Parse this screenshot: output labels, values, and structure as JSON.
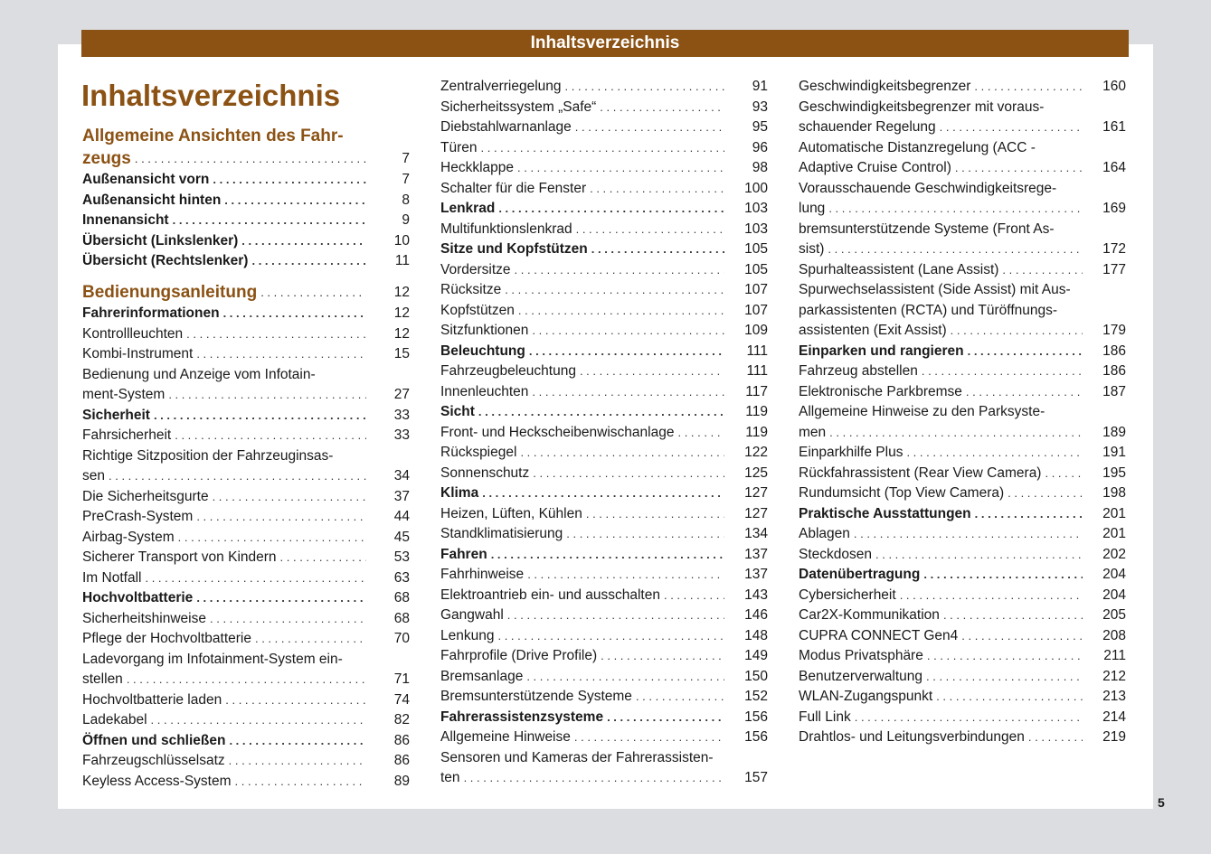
{
  "header": {
    "title": "Inhaltsverzeichnis"
  },
  "page_title": "Inhaltsverzeichnis",
  "page_number": "5",
  "colors": {
    "accent": "#8b5214",
    "background": "#dcdde0",
    "page": "#ffffff"
  },
  "columns": [
    [
      {
        "lines": [
          "Allgemeine Ansichten des Fahr-",
          "zeugs"
        ],
        "page": "7",
        "style": "section"
      },
      {
        "lines": [
          "Außenansicht vorn"
        ],
        "page": "7",
        "style": "bold"
      },
      {
        "lines": [
          "Außenansicht hinten"
        ],
        "page": "8",
        "style": "bold"
      },
      {
        "lines": [
          "Innenansicht"
        ],
        "page": "9",
        "style": "bold"
      },
      {
        "lines": [
          "Übersicht (Linkslenker)"
        ],
        "page": "10",
        "style": "bold"
      },
      {
        "lines": [
          "Übersicht (Rechtslenker)"
        ],
        "page": "11",
        "style": "bold"
      },
      {
        "lines": [
          "Bedienungsanleitung"
        ],
        "page": "12",
        "style": "section gap"
      },
      {
        "lines": [
          "Fahrerinformationen"
        ],
        "page": "12",
        "style": "bold"
      },
      {
        "lines": [
          "Kontrollleuchten"
        ],
        "page": "12",
        "style": ""
      },
      {
        "lines": [
          "Kombi-Instrument"
        ],
        "page": "15",
        "style": ""
      },
      {
        "lines": [
          "Bedienung und Anzeige vom Infotain-",
          "ment-System"
        ],
        "page": "27",
        "style": ""
      },
      {
        "lines": [
          "Sicherheit"
        ],
        "page": "33",
        "style": "bold"
      },
      {
        "lines": [
          "Fahrsicherheit"
        ],
        "page": "33",
        "style": ""
      },
      {
        "lines": [
          "Richtige Sitzposition der Fahrzeuginsas-",
          "sen"
        ],
        "page": "34",
        "style": ""
      },
      {
        "lines": [
          "Die Sicherheitsgurte"
        ],
        "page": "37",
        "style": ""
      },
      {
        "lines": [
          "PreCrash-System"
        ],
        "page": "44",
        "style": ""
      },
      {
        "lines": [
          "Airbag-System"
        ],
        "page": "45",
        "style": ""
      },
      {
        "lines": [
          "Sicherer Transport von Kindern"
        ],
        "page": "53",
        "style": ""
      },
      {
        "lines": [
          "Im Notfall"
        ],
        "page": "63",
        "style": ""
      },
      {
        "lines": [
          "Hochvoltbatterie"
        ],
        "page": "68",
        "style": "bold"
      },
      {
        "lines": [
          "Sicherheitshinweise"
        ],
        "page": "68",
        "style": ""
      },
      {
        "lines": [
          "Pflege der Hochvoltbatterie"
        ],
        "page": "70",
        "style": ""
      },
      {
        "lines": [
          "Ladevorgang im Infotainment-System ein-",
          "stellen"
        ],
        "page": "71",
        "style": ""
      },
      {
        "lines": [
          "Hochvoltbatterie laden"
        ],
        "page": "74",
        "style": ""
      },
      {
        "lines": [
          "Ladekabel"
        ],
        "page": "82",
        "style": ""
      },
      {
        "lines": [
          "Öffnen und schließen"
        ],
        "page": "86",
        "style": "bold"
      },
      {
        "lines": [
          "Fahrzeugschlüsselsatz"
        ],
        "page": "86",
        "style": ""
      },
      {
        "lines": [
          "Keyless Access-System"
        ],
        "page": "89",
        "style": ""
      }
    ],
    [
      {
        "lines": [
          "Zentralverriegelung"
        ],
        "page": "91",
        "style": ""
      },
      {
        "lines": [
          "Sicherheitssystem „Safe“"
        ],
        "page": "93",
        "style": ""
      },
      {
        "lines": [
          "Diebstahlwarnanlage"
        ],
        "page": "95",
        "style": ""
      },
      {
        "lines": [
          "Türen"
        ],
        "page": "96",
        "style": ""
      },
      {
        "lines": [
          "Heckklappe"
        ],
        "page": "98",
        "style": ""
      },
      {
        "lines": [
          "Schalter für die Fenster"
        ],
        "page": "100",
        "style": ""
      },
      {
        "lines": [
          "Lenkrad"
        ],
        "page": "103",
        "style": "bold"
      },
      {
        "lines": [
          "Multifunktionslenkrad"
        ],
        "page": "103",
        "style": ""
      },
      {
        "lines": [
          "Sitze und Kopfstützen"
        ],
        "page": "105",
        "style": "bold"
      },
      {
        "lines": [
          "Vordersitze"
        ],
        "page": "105",
        "style": ""
      },
      {
        "lines": [
          "Rücksitze"
        ],
        "page": "107",
        "style": ""
      },
      {
        "lines": [
          "Kopfstützen"
        ],
        "page": "107",
        "style": ""
      },
      {
        "lines": [
          "Sitzfunktionen"
        ],
        "page": "109",
        "style": ""
      },
      {
        "lines": [
          "Beleuchtung"
        ],
        "page": "111",
        "style": "bold"
      },
      {
        "lines": [
          "Fahrzeugbeleuchtung"
        ],
        "page": "111",
        "style": ""
      },
      {
        "lines": [
          "Innenleuchten"
        ],
        "page": "117",
        "style": ""
      },
      {
        "lines": [
          "Sicht"
        ],
        "page": "119",
        "style": "bold"
      },
      {
        "lines": [
          "Front- und Heckscheibenwischanlage"
        ],
        "page": "119",
        "style": ""
      },
      {
        "lines": [
          "Rückspiegel"
        ],
        "page": "122",
        "style": ""
      },
      {
        "lines": [
          "Sonnenschutz"
        ],
        "page": "125",
        "style": ""
      },
      {
        "lines": [
          "Klima"
        ],
        "page": "127",
        "style": "bold"
      },
      {
        "lines": [
          "Heizen, Lüften, Kühlen"
        ],
        "page": "127",
        "style": ""
      },
      {
        "lines": [
          "Standklimatisierung"
        ],
        "page": "134",
        "style": ""
      },
      {
        "lines": [
          "Fahren"
        ],
        "page": "137",
        "style": "bold"
      },
      {
        "lines": [
          "Fahrhinweise"
        ],
        "page": "137",
        "style": ""
      },
      {
        "lines": [
          "Elektroantrieb ein- und ausschalten"
        ],
        "page": "143",
        "style": ""
      },
      {
        "lines": [
          "Gangwahl"
        ],
        "page": "146",
        "style": ""
      },
      {
        "lines": [
          "Lenkung"
        ],
        "page": "148",
        "style": ""
      },
      {
        "lines": [
          "Fahrprofile (Drive Profile)"
        ],
        "page": "149",
        "style": ""
      },
      {
        "lines": [
          "Bremsanlage"
        ],
        "page": "150",
        "style": ""
      },
      {
        "lines": [
          "Bremsunterstützende Systeme"
        ],
        "page": "152",
        "style": ""
      },
      {
        "lines": [
          "Fahrerassistenzsysteme"
        ],
        "page": "156",
        "style": "bold"
      },
      {
        "lines": [
          "Allgemeine Hinweise"
        ],
        "page": "156",
        "style": ""
      },
      {
        "lines": [
          "Sensoren und Kameras der Fahrerassisten-",
          "ten"
        ],
        "page": "157",
        "style": ""
      }
    ],
    [
      {
        "lines": [
          "Geschwindigkeitsbegrenzer"
        ],
        "page": "160",
        "style": ""
      },
      {
        "lines": [
          "Geschwindigkeitsbegrenzer mit voraus-",
          "schauender Regelung"
        ],
        "page": "161",
        "style": ""
      },
      {
        "lines": [
          "Automatische Distanzregelung (ACC -",
          "Adaptive Cruise Control)"
        ],
        "page": "164",
        "style": ""
      },
      {
        "lines": [
          "Vorausschauende Geschwindigkeitsrege-",
          "lung"
        ],
        "page": "169",
        "style": ""
      },
      {
        "lines": [
          "bremsunterstützende Systeme (Front As-",
          "sist)"
        ],
        "page": "172",
        "style": ""
      },
      {
        "lines": [
          "Spurhalteassistent (Lane Assist)"
        ],
        "page": "177",
        "style": ""
      },
      {
        "lines": [
          "Spurwechselassistent (Side Assist) mit Aus-",
          "parkassistenten (RCTA) und Türöffnungs-",
          "assistenten (Exit Assist)"
        ],
        "page": "179",
        "style": ""
      },
      {
        "lines": [
          "Einparken und rangieren"
        ],
        "page": "186",
        "style": "bold"
      },
      {
        "lines": [
          "Fahrzeug abstellen"
        ],
        "page": "186",
        "style": ""
      },
      {
        "lines": [
          "Elektronische Parkbremse"
        ],
        "page": "187",
        "style": ""
      },
      {
        "lines": [
          "Allgemeine Hinweise zu den Parksyste-",
          "men"
        ],
        "page": "189",
        "style": ""
      },
      {
        "lines": [
          "Einparkhilfe Plus"
        ],
        "page": "191",
        "style": ""
      },
      {
        "lines": [
          "Rückfahrassistent (Rear View Camera)"
        ],
        "page": "195",
        "style": ""
      },
      {
        "lines": [
          "Rundumsicht (Top View Camera)"
        ],
        "page": "198",
        "style": ""
      },
      {
        "lines": [
          "Praktische Ausstattungen"
        ],
        "page": "201",
        "style": "bold"
      },
      {
        "lines": [
          "Ablagen"
        ],
        "page": "201",
        "style": ""
      },
      {
        "lines": [
          "Steckdosen"
        ],
        "page": "202",
        "style": ""
      },
      {
        "lines": [
          "Datenübertragung"
        ],
        "page": "204",
        "style": "bold"
      },
      {
        "lines": [
          "Cybersicherheit"
        ],
        "page": "204",
        "style": ""
      },
      {
        "lines": [
          "Car2X-Kommunikation"
        ],
        "page": "205",
        "style": ""
      },
      {
        "lines": [
          "CUPRA CONNECT Gen4"
        ],
        "page": "208",
        "style": ""
      },
      {
        "lines": [
          "Modus Privatsphäre"
        ],
        "page": "211",
        "style": ""
      },
      {
        "lines": [
          "Benutzerverwaltung"
        ],
        "page": "212",
        "style": ""
      },
      {
        "lines": [
          "WLAN-Zugangspunkt"
        ],
        "page": "213",
        "style": ""
      },
      {
        "lines": [
          "Full Link"
        ],
        "page": "214",
        "style": ""
      },
      {
        "lines": [
          "Drahtlos- und Leitungsverbindungen"
        ],
        "page": "219",
        "style": ""
      }
    ]
  ]
}
